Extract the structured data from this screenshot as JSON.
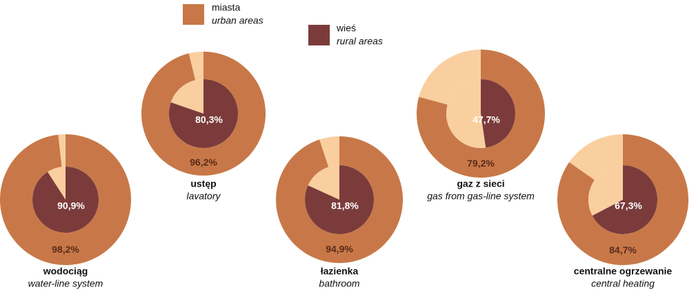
{
  "chart_data": {
    "type": "nested-donut",
    "categories": [
      "wodociąg",
      "ustęp",
      "łazienka",
      "gaz z sieci",
      "centralne ogrzewanie"
    ],
    "categories_en": [
      "water-line system",
      "lavatory",
      "bathroom",
      "gas from gas-line system",
      "central heating"
    ],
    "remainder_color": "#f9cfa0",
    "series": [
      {
        "name": "miasta",
        "name_en": "urban areas",
        "color": "#c87848",
        "ring": "outer",
        "values": [
          98.2,
          96.2,
          94.9,
          79.2,
          84.7
        ],
        "value_labels": [
          "98,2%",
          "96,2%",
          "94,9%",
          "79,2%",
          "84,7%"
        ]
      },
      {
        "name": "wieś",
        "name_en": "rural areas",
        "color": "#7b3b3b",
        "ring": "inner",
        "values": [
          90.9,
          80.3,
          81.8,
          47.7,
          67.3
        ],
        "value_labels": [
          "90,9%",
          "80,3%",
          "81,8%",
          "47,7%",
          "67,3%"
        ]
      }
    ]
  }
}
